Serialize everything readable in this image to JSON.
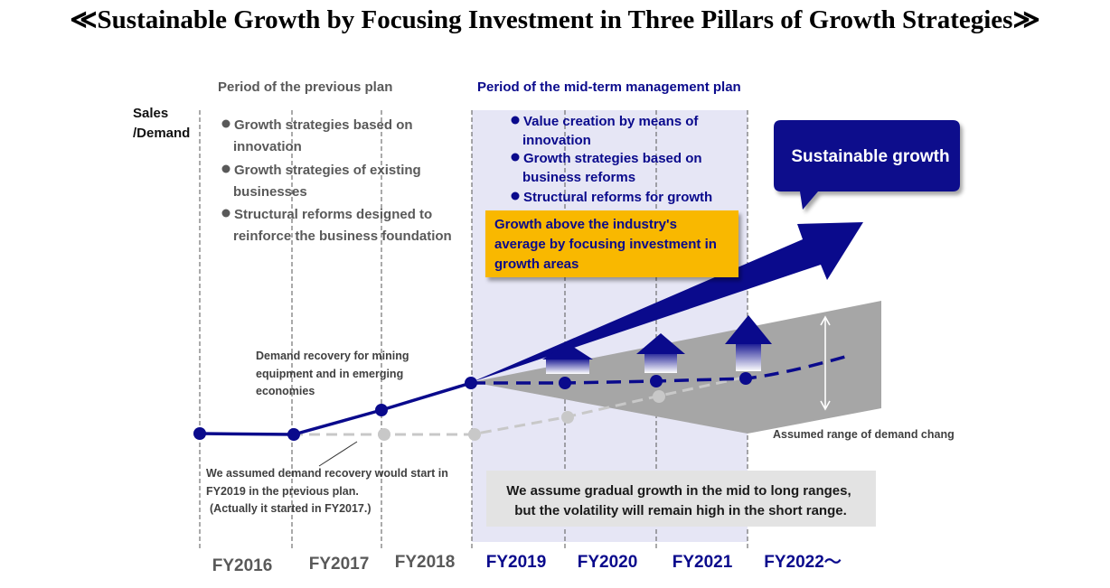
{
  "title": "≪Sustainable Growth by Focusing Investment in Three Pillars of Growth Strategies≫",
  "y_axis_label": [
    "Sales",
    "/Demand"
  ],
  "previous_plan": {
    "heading": "Period of the previous plan",
    "bullets": [
      [
        "Growth strategies based on",
        "innovation"
      ],
      [
        "Growth strategies of existing",
        "businesses"
      ],
      [
        "Structural reforms designed to",
        "reinforce the business foundation"
      ]
    ]
  },
  "mid_term_plan": {
    "heading": "Period of the mid-term management plan",
    "bullets": [
      [
        "Value creation by means of",
        "innovation"
      ],
      [
        "Growth strategies based on",
        "business reforms"
      ],
      [
        "Structural reforms for growth"
      ]
    ]
  },
  "orange_box": [
    "Growth above the industry's",
    "average by focusing investment in",
    "growth areas"
  ],
  "callout": "Sustainable growth",
  "demand_recovery_note": [
    "Demand recovery for mining",
    "equipment and in emerging",
    "economies"
  ],
  "assumption_note": [
    "We assumed demand recovery would start in",
    "FY2019 in the previous plan.",
    "(Actually it started in FY2017.)"
  ],
  "range_label": "Assumed range of demand chang",
  "grey_box": [
    "We assume gradual growth in the mid to long ranges,",
    "but the volatility will remain high in the short range."
  ],
  "fiscal_years": [
    "FY2016",
    "FY2017",
    "FY2018",
    "FY2019",
    "FY2020",
    "FY2021",
    "FY2022～"
  ],
  "colors": {
    "navy": "#0a0a8c",
    "plan_band": "#e6e6f5",
    "orange": "#f9b800",
    "grey_range": "#a6a6a6",
    "grey_line": "#c8c8c8",
    "previous_text": "#595959"
  }
}
